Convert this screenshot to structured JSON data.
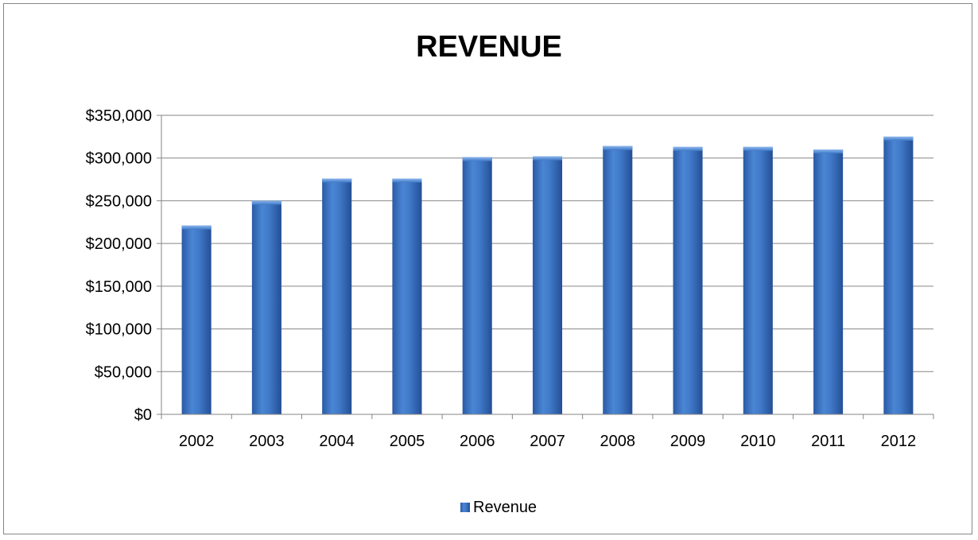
{
  "chart_data": {
    "type": "bar",
    "title": "REVENUE",
    "xlabel": "",
    "ylabel": "",
    "categories": [
      "2002",
      "2003",
      "2004",
      "2005",
      "2006",
      "2007",
      "2008",
      "2009",
      "2010",
      "2011",
      "2012"
    ],
    "series": [
      {
        "name": "Revenue",
        "values": [
          221000,
          250000,
          276000,
          276000,
          301000,
          302000,
          314000,
          313000,
          313000,
          310000,
          325000
        ]
      }
    ],
    "ylim": [
      0,
      350000
    ],
    "yticks": [
      0,
      50000,
      100000,
      150000,
      200000,
      250000,
      300000,
      350000
    ],
    "ytick_labels": [
      "$0",
      "$50,000",
      "$100,000",
      "$150,000",
      "$200,000",
      "$250,000",
      "$300,000",
      "$350,000"
    ],
    "grid": true,
    "legend_position": "bottom",
    "bar_color": "#3d73bf"
  }
}
